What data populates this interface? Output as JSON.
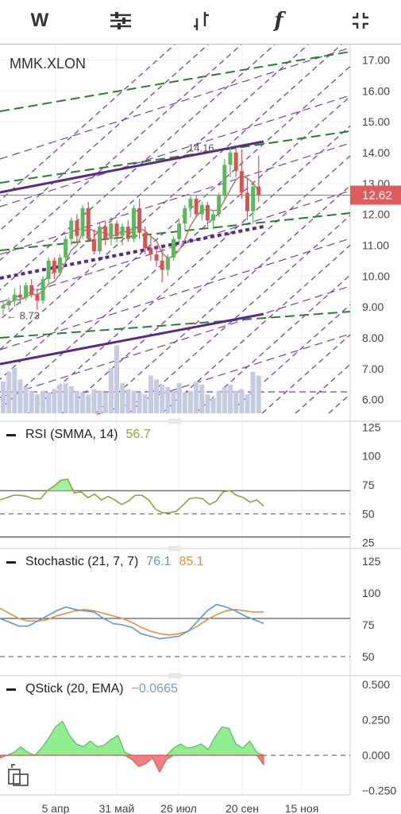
{
  "toolbar": {
    "timeframe_label": "W",
    "indicators_icon": "sliders-icon",
    "chart_type_icon": "bars-icon",
    "formula_label": "f",
    "collapse_icon": "collapse-icon"
  },
  "main": {
    "symbol": "MMK.XLON",
    "price_ticks": [
      "17.00",
      "16.00",
      "15.00",
      "14.00",
      "13.00",
      "12.00",
      "11.00",
      "10.00",
      "9.00",
      "8.00",
      "7.00",
      "6.00"
    ],
    "last_price": "12.62",
    "high_label": "14.16",
    "low_label": "8.73"
  },
  "rsi": {
    "label": "RSI (SMMA, 14)",
    "value": "56.7",
    "ticks": [
      "125",
      "100",
      "75",
      "50",
      "25"
    ]
  },
  "stoch": {
    "label": "Stochastic (21, 7, 7)",
    "value_k": "76.1",
    "value_d": "85.1",
    "ticks": [
      "125",
      "100",
      "75",
      "50"
    ]
  },
  "qstick": {
    "label": "QStick (20, EMA)",
    "value": "−0.0665",
    "ticks": [
      "0.500",
      "0.250",
      "0.000",
      "−0.250"
    ]
  },
  "x_ticks": [
    "5 апр",
    "31 май",
    "26 июл",
    "20 сен",
    "15 ноя"
  ],
  "colors": {
    "bull": "#5cb85c",
    "bear": "#d9534f",
    "last_price_bg": "#e05c5c",
    "rsi_line": "#8fa246",
    "stoch_k": "#5b9bc4",
    "stoch_d": "#e0904b",
    "qstick_value": "#7d9cc0",
    "rsi_value": "#8fa246",
    "channel_purple": "#5b2a86",
    "fan_purple": "#7b3fa8",
    "fan_green": "#2e7d32",
    "volume": "#c5cbe0"
  },
  "chart_data": [
    {
      "type": "candlestick",
      "title": "MMK.XLON",
      "ylim": [
        5.5,
        17.5
      ],
      "x_tick_labels": [
        "5 апр",
        "31 май",
        "26 июл",
        "20 сен",
        "15 ноя"
      ],
      "ohlc": [
        [
          8.95,
          9.2,
          8.73,
          9.05
        ],
        [
          9.05,
          9.3,
          8.9,
          9.2
        ],
        [
          9.2,
          9.6,
          9.0,
          9.4
        ],
        [
          9.4,
          9.7,
          9.1,
          9.3
        ],
        [
          9.3,
          9.8,
          9.2,
          9.7
        ],
        [
          9.7,
          9.9,
          9.3,
          9.4
        ],
        [
          9.4,
          9.6,
          8.9,
          9.2
        ],
        [
          9.2,
          10.0,
          9.1,
          9.9
        ],
        [
          9.9,
          10.6,
          9.7,
          10.5
        ],
        [
          10.5,
          10.6,
          9.9,
          10.1
        ],
        [
          10.1,
          10.7,
          10.0,
          10.6
        ],
        [
          10.6,
          11.3,
          10.4,
          11.2
        ],
        [
          11.2,
          11.9,
          11.0,
          11.8
        ],
        [
          11.8,
          12.0,
          11.1,
          11.3
        ],
        [
          11.3,
          12.3,
          11.2,
          12.2
        ],
        [
          12.2,
          12.4,
          11.1,
          11.2
        ],
        [
          11.2,
          11.5,
          10.7,
          10.8
        ],
        [
          10.8,
          11.7,
          10.7,
          11.6
        ],
        [
          11.6,
          11.8,
          11.0,
          11.2
        ],
        [
          11.2,
          11.9,
          11.0,
          11.7
        ],
        [
          11.7,
          11.8,
          11.1,
          11.3
        ],
        [
          11.3,
          11.7,
          11.0,
          11.6
        ],
        [
          11.6,
          11.8,
          11.1,
          11.2
        ],
        [
          11.2,
          12.3,
          11.1,
          12.2
        ],
        [
          12.2,
          12.5,
          11.2,
          11.4
        ],
        [
          11.4,
          11.6,
          10.7,
          10.9
        ],
        [
          10.9,
          11.3,
          10.5,
          10.7
        ],
        [
          10.7,
          11.0,
          10.3,
          10.5
        ],
        [
          10.5,
          10.9,
          9.8,
          10.2
        ],
        [
          10.2,
          10.7,
          10.0,
          10.6
        ],
        [
          10.6,
          11.3,
          10.5,
          11.2
        ],
        [
          11.2,
          11.8,
          11.0,
          11.7
        ],
        [
          11.7,
          12.3,
          11.5,
          12.2
        ],
        [
          12.2,
          12.6,
          11.9,
          12.5
        ],
        [
          12.5,
          12.6,
          11.9,
          12.0
        ],
        [
          12.0,
          12.4,
          11.8,
          12.3
        ],
        [
          12.3,
          12.4,
          11.6,
          11.8
        ],
        [
          11.8,
          12.1,
          11.5,
          12.0
        ],
        [
          12.0,
          12.7,
          11.9,
          12.6
        ],
        [
          12.6,
          13.8,
          12.5,
          13.6
        ],
        [
          13.6,
          14.16,
          13.2,
          14.0
        ],
        [
          14.0,
          14.16,
          13.2,
          13.4
        ],
        [
          13.4,
          14.1,
          12.5,
          12.7
        ],
        [
          12.7,
          13.2,
          11.8,
          12.1
        ],
        [
          12.1,
          13.0,
          11.7,
          12.9
        ],
        [
          12.9,
          13.9,
          12.4,
          12.62
        ]
      ],
      "volume": [
        0.42,
        0.55,
        0.6,
        0.45,
        0.35,
        0.3,
        0.25,
        0.3,
        0.28,
        0.32,
        0.38,
        0.4,
        0.36,
        0.3,
        0.28,
        0.25,
        0.32,
        0.3,
        0.28,
        0.6,
        0.9,
        0.4,
        0.32,
        0.3,
        0.28,
        0.25,
        0.5,
        0.45,
        0.38,
        0.35,
        0.3,
        0.4,
        0.28,
        0.3,
        0.42,
        0.38,
        0.25,
        0.2,
        0.3,
        0.35,
        0.38,
        0.3,
        0.32,
        0.25,
        0.55,
        0.5
      ]
    },
    {
      "type": "line",
      "title": "RSI (SMMA, 14)",
      "ylim": [
        20,
        130
      ],
      "series": [
        {
          "name": "RSI (SMMA, 14)",
          "values": [
            62,
            64,
            66,
            66,
            65,
            63,
            63,
            70,
            74,
            79,
            80,
            68,
            69,
            64,
            67,
            62,
            65,
            62,
            58,
            61,
            66,
            66,
            62,
            54,
            51,
            51,
            52,
            57,
            63,
            64,
            63,
            58,
            61,
            69,
            70,
            66,
            64,
            60,
            62,
            56.7
          ]
        }
      ]
    },
    {
      "type": "line",
      "title": "Stochastic (21, 7, 7)",
      "ylim": [
        35,
        135
      ],
      "series": [
        {
          "name": "76.1",
          "values": [
            80,
            77,
            74,
            74,
            78,
            82,
            86,
            89,
            87,
            86,
            85,
            80,
            76,
            75,
            73,
            68,
            66,
            64,
            65,
            66,
            70,
            78,
            86,
            91,
            89,
            86,
            82,
            79,
            76.1
          ]
        },
        {
          "name": "85.1",
          "values": [
            88,
            84,
            80,
            78,
            78,
            79,
            82,
            84,
            86,
            87,
            86,
            84,
            82,
            80,
            77,
            73,
            70,
            68,
            67,
            68,
            70,
            74,
            79,
            83,
            86,
            87,
            86,
            85,
            85.1
          ]
        }
      ]
    },
    {
      "type": "area",
      "title": "QStick (20, EMA)",
      "ylim": [
        -0.28,
        0.55
      ],
      "series": [
        {
          "name": "QStick (20, EMA)",
          "values": [
            -0.02,
            0.0,
            0.02,
            0.06,
            0.02,
            0.0,
            0.05,
            0.12,
            0.2,
            0.24,
            0.14,
            0.08,
            0.06,
            0.1,
            0.06,
            0.07,
            0.11,
            0.14,
            0.02,
            -0.03,
            -0.08,
            -0.06,
            -0.02,
            -0.12,
            -0.03,
            0.05,
            0.08,
            0.05,
            0.06,
            0.08,
            0.04,
            0.13,
            0.2,
            0.19,
            0.08,
            0.05,
            0.1,
            0.02,
            -0.0665
          ]
        }
      ]
    }
  ]
}
